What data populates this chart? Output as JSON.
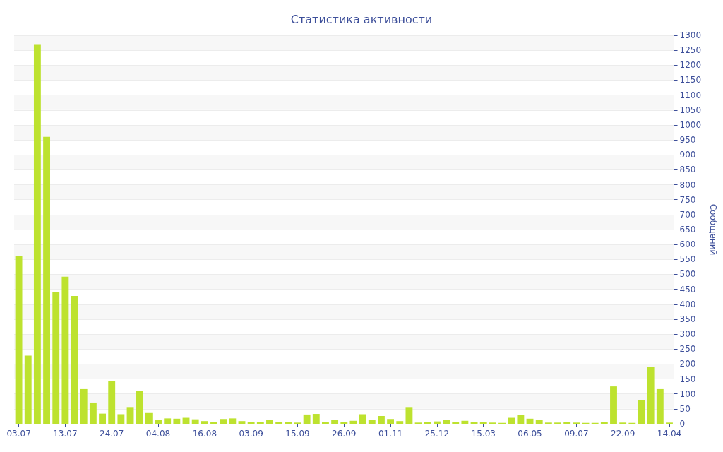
{
  "chart_data": {
    "type": "bar",
    "title": "Статистика активности",
    "ylabel": "Сообщений",
    "categories": [
      "03.07",
      null,
      null,
      null,
      null,
      "13.07",
      null,
      null,
      null,
      null,
      "24.07",
      null,
      null,
      null,
      null,
      "04.08",
      null,
      null,
      null,
      null,
      "16.08",
      null,
      null,
      null,
      null,
      "03.09",
      null,
      null,
      null,
      null,
      "15.09",
      null,
      null,
      null,
      null,
      "26.09",
      null,
      null,
      null,
      null,
      "01.11",
      null,
      null,
      null,
      null,
      "25.12",
      null,
      null,
      null,
      null,
      "15.03",
      null,
      null,
      null,
      null,
      "06.05",
      null,
      null,
      null,
      null,
      "09.07",
      null,
      null,
      null,
      null,
      "22.09",
      null,
      null,
      null,
      null,
      "14.04"
    ],
    "values": [
      560,
      228,
      1268,
      960,
      442,
      492,
      428,
      116,
      71,
      34,
      142,
      32,
      56,
      111,
      36,
      12,
      18,
      17,
      20,
      15,
      9,
      7,
      16,
      18,
      9,
      6,
      6,
      12,
      5,
      5,
      4,
      31,
      33,
      6,
      12,
      7,
      10,
      32,
      14,
      26,
      16,
      9,
      56,
      4,
      5,
      8,
      12,
      5,
      10,
      6,
      6,
      4,
      3,
      20,
      30,
      17,
      13,
      4,
      4,
      5,
      4,
      3,
      3,
      6,
      125,
      4,
      3,
      80,
      190,
      116,
      4
    ],
    "color": "#bde22f",
    "ylim": [
      0,
      1300
    ],
    "yticks": [
      0,
      50,
      100,
      150,
      200,
      250,
      300,
      350,
      400,
      450,
      500,
      550,
      600,
      650,
      700,
      750,
      800,
      850,
      900,
      950,
      1000,
      1050,
      1100,
      1150,
      1200,
      1250,
      1300
    ],
    "grid": true
  }
}
